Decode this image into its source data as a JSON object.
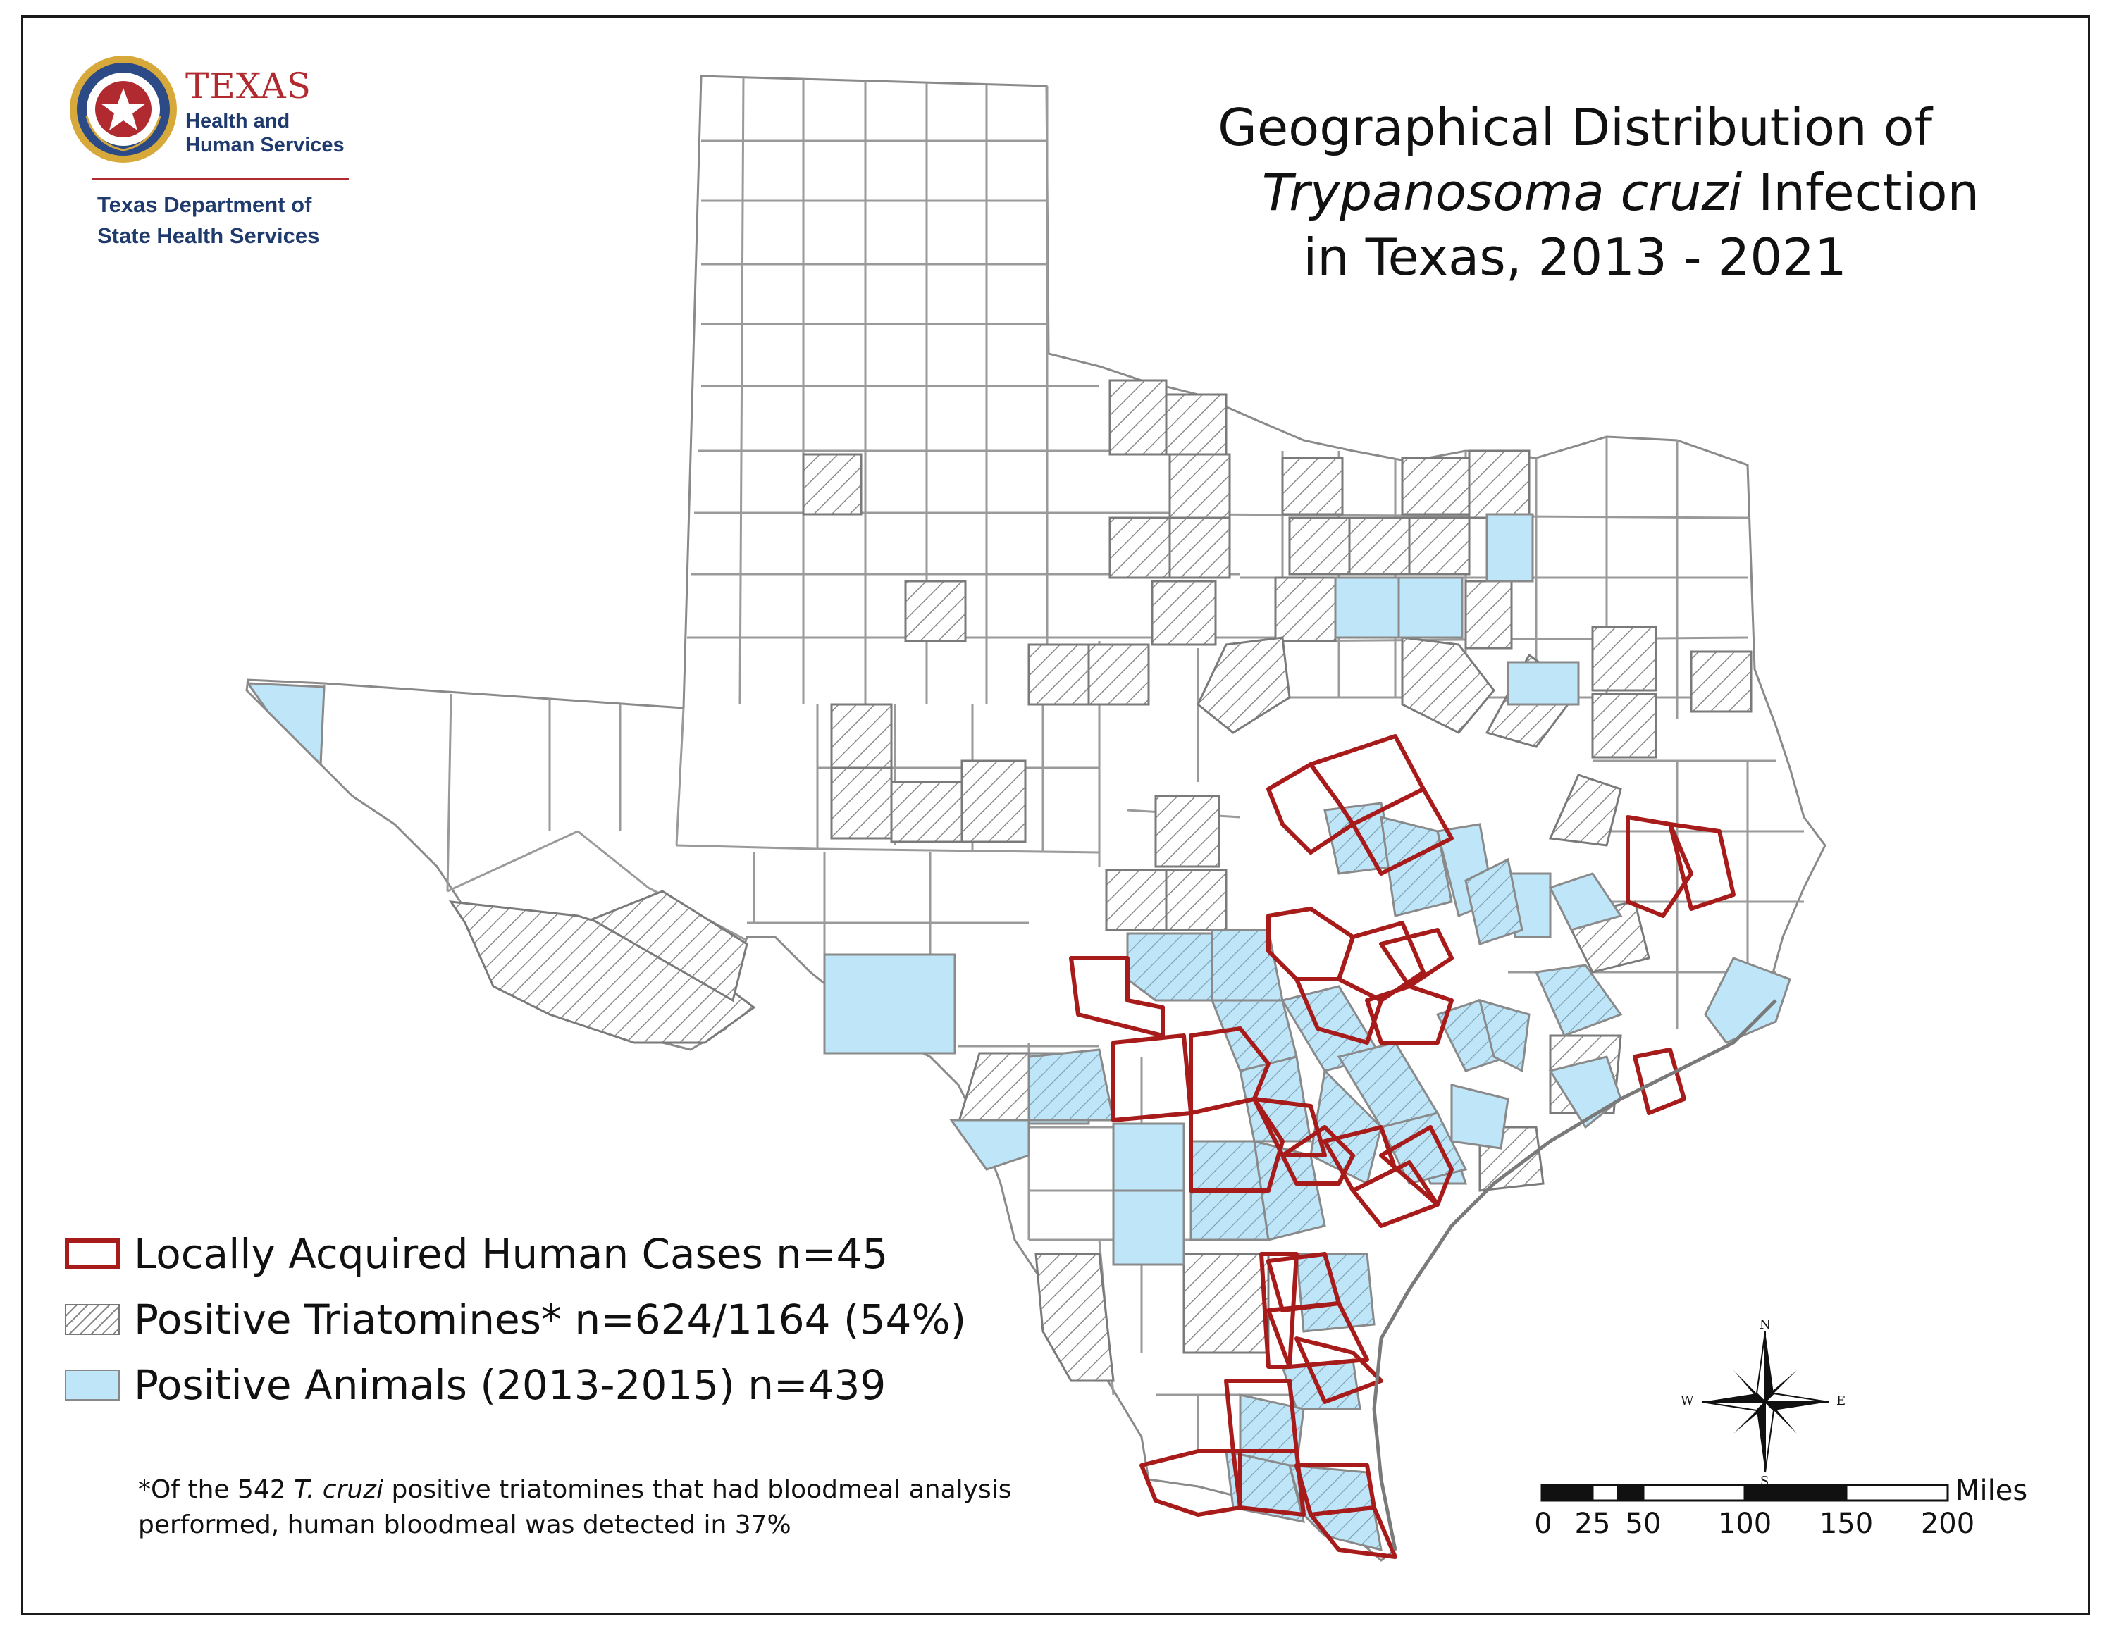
{
  "logo": {
    "title": "TEXAS",
    "subtitle": "Health and Human Services",
    "department": "Texas Department of State Health Services"
  },
  "title": {
    "line1": "Geographical Distribution of",
    "line2_italic": "Trypanosoma cruzi",
    "line2_rest": " Infection",
    "line3": "in Texas, 2013 - 2021"
  },
  "legend": [
    {
      "label": "Locally Acquired Human Cases  n=45",
      "style": "red-outline"
    },
    {
      "label": "Positive Triatomines* n=624/1164 (54%)",
      "style": "gray-hatch"
    },
    {
      "label": "Positive Animals (2013-2015) n=439",
      "style": "light-blue-fill"
    }
  ],
  "footnote": {
    "pre": "*Of the 542 ",
    "italic": "T. cruzi",
    "post": " positive triatomines that had bloodmeal analysis performed, human bloodmeal was detected in 37%"
  },
  "compass": {
    "n": "N",
    "s": "S",
    "e": "E",
    "w": "W"
  },
  "scale": {
    "unit": "Miles",
    "ticks": [
      "0",
      "25",
      "50",
      "100",
      "150",
      "200"
    ]
  },
  "colors": {
    "human_case_outline": "#a81b1b",
    "animal_fill": "#bfe6f8",
    "hatch": "#8a8a8a",
    "county_border": "#9a9a9a"
  }
}
